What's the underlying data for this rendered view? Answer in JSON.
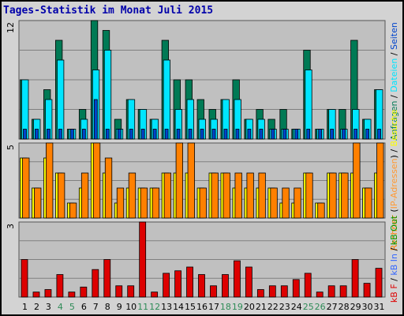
{
  "title": "Tages-Statistik im Monat Juli 2015",
  "colors": {
    "anfragen": "#007a55",
    "dateien": "#00e5ff",
    "seiten": "#0044cc",
    "rechner": "#ff8000",
    "ip_adressen": "#ff9933",
    "besuche": "#ffff00",
    "kb_f": "#dd0000",
    "kb_in": "#3366ff",
    "kb_out": "#009900",
    "plot_bg": "#c0c0c0",
    "weekend_label": "#2e8b57"
  },
  "chart_data": [
    {
      "type": "bar",
      "categories": [
        "1",
        "2",
        "3",
        "4",
        "5",
        "6",
        "7",
        "8",
        "9",
        "10",
        "11",
        "12",
        "13",
        "14",
        "15",
        "16",
        "17",
        "18",
        "19",
        "20",
        "21",
        "22",
        "23",
        "24",
        "25",
        "26",
        "27",
        "28",
        "29",
        "30",
        "31"
      ],
      "weekend_days": [
        "4",
        "5",
        "11",
        "12",
        "18",
        "19",
        "25",
        "26"
      ],
      "ymax_label": "12",
      "ylim": [
        0,
        12
      ],
      "legend": [
        {
          "text": "Anfragen",
          "color": "#007a55"
        },
        {
          "text": " / ",
          "color": "#000000"
        },
        {
          "text": "Dateien",
          "color": "#00e5ff"
        },
        {
          "text": " / ",
          "color": "#000000"
        },
        {
          "text": "Seiten",
          "color": "#0044cc"
        }
      ],
      "series": [
        {
          "name": "Anfragen",
          "values": [
            6,
            2,
            5,
            10,
            1,
            3,
            12,
            11,
            2,
            4,
            3,
            2,
            10,
            6,
            6,
            4,
            3,
            4,
            6,
            2,
            3,
            2,
            3,
            1,
            9,
            1,
            3,
            3,
            10,
            2,
            5
          ]
        },
        {
          "name": "Dateien",
          "values": [
            6,
            2,
            4,
            8,
            1,
            2,
            7,
            9,
            1,
            4,
            3,
            2,
            8,
            3,
            4,
            2,
            2,
            4,
            4,
            2,
            2,
            1,
            1,
            1,
            7,
            1,
            3,
            1,
            3,
            2,
            5
          ]
        },
        {
          "name": "Seiten",
          "values": [
            1,
            1,
            1,
            1,
            1,
            1,
            4,
            1,
            1,
            1,
            1,
            1,
            1,
            1,
            1,
            1,
            1,
            1,
            1,
            1,
            1,
            1,
            1,
            1,
            1,
            1,
            1,
            1,
            1,
            1,
            1
          ]
        }
      ]
    },
    {
      "type": "bar",
      "categories": [
        "1",
        "2",
        "3",
        "4",
        "5",
        "6",
        "7",
        "8",
        "9",
        "10",
        "11",
        "12",
        "13",
        "14",
        "15",
        "16",
        "17",
        "18",
        "19",
        "20",
        "21",
        "22",
        "23",
        "24",
        "25",
        "26",
        "27",
        "28",
        "29",
        "30",
        "31"
      ],
      "ymax_label": "5",
      "ylim": [
        0,
        5
      ],
      "legend": [
        {
          "text": "Rechner",
          "color": "#ff8000"
        },
        {
          "text": " (",
          "color": "#000000"
        },
        {
          "text": "IP-Adressen",
          "color": "#ff9933"
        },
        {
          "text": ") / ",
          "color": "#000000"
        },
        {
          "text": "Besuche",
          "color": "#ffff00"
        }
      ],
      "series": [
        {
          "name": "Rechner",
          "values": [
            4,
            2,
            5,
            3,
            1,
            3,
            5,
            4,
            2,
            3,
            2,
            2,
            3,
            5,
            5,
            2,
            3,
            3,
            3,
            3,
            3,
            2,
            2,
            2,
            3,
            1,
            3,
            3,
            5,
            2,
            5
          ]
        },
        {
          "name": "Besuche",
          "values": [
            4,
            2,
            4,
            3,
            1,
            2,
            5,
            3,
            1,
            2,
            2,
            2,
            3,
            3,
            3,
            2,
            3,
            3,
            2,
            2,
            2,
            2,
            1,
            1,
            3,
            1,
            3,
            3,
            3,
            2,
            3
          ]
        }
      ]
    },
    {
      "type": "bar",
      "categories": [
        "1",
        "2",
        "3",
        "4",
        "5",
        "6",
        "7",
        "8",
        "9",
        "10",
        "11",
        "12",
        "13",
        "14",
        "15",
        "16",
        "17",
        "18",
        "19",
        "20",
        "21",
        "22",
        "23",
        "24",
        "25",
        "26",
        "27",
        "28",
        "29",
        "30",
        "31"
      ],
      "ymax_label": "3",
      "ylim": [
        0,
        3
      ],
      "legend": [
        {
          "text": "kB F",
          "color": "#dd0000"
        },
        {
          "text": " / ",
          "color": "#000000"
        },
        {
          "text": "kB In",
          "color": "#3366ff"
        },
        {
          "text": " / ",
          "color": "#000000"
        },
        {
          "text": "kB Out",
          "color": "#009900"
        }
      ],
      "series": [
        {
          "name": "kB F",
          "values": [
            1.5,
            0.2,
            0.3,
            0.9,
            0.2,
            0.4,
            1.1,
            1.5,
            0.45,
            0.45,
            3.0,
            0.2,
            0.95,
            1.05,
            1.2,
            0.9,
            0.45,
            0.9,
            1.45,
            1.2,
            0.3,
            0.45,
            0.45,
            0.7,
            0.95,
            0.2,
            0.45,
            0.45,
            1.5,
            0.55,
            1.15
          ]
        },
        {
          "name": "kB In",
          "values": [
            0,
            0,
            0,
            0,
            0,
            0,
            0,
            0,
            0,
            0,
            0,
            0,
            0,
            0,
            0,
            0,
            0,
            0,
            0,
            0,
            0,
            0,
            0,
            0,
            0,
            0,
            0,
            0,
            0,
            0,
            0
          ]
        },
        {
          "name": "kB Out",
          "values": [
            0,
            0,
            0,
            0,
            0,
            0,
            0,
            0,
            0,
            0,
            0,
            0,
            0,
            0,
            0,
            0,
            0,
            0,
            0,
            0,
            0,
            0,
            0,
            0,
            0,
            0,
            0,
            0,
            0,
            0,
            0
          ]
        }
      ]
    }
  ]
}
